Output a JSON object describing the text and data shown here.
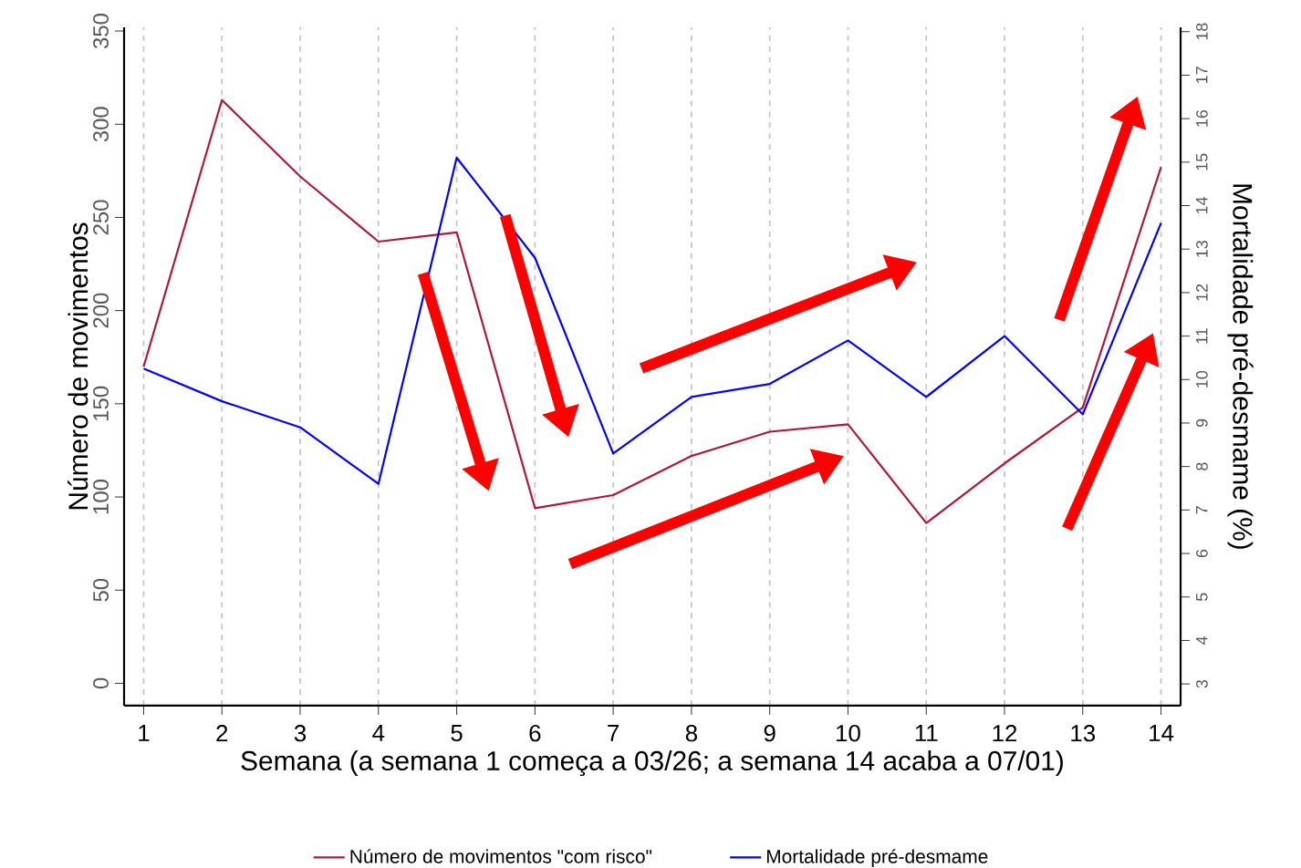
{
  "chart_data": {
    "type": "line",
    "xlabel": "Semana (a semana 1 começa a 03/26; a semana 14 acaba a 07/01)",
    "ylabel": "Número de movimentos",
    "y2label": "Mortalidade pré-desmame (%)",
    "x": [
      1,
      2,
      3,
      4,
      5,
      6,
      7,
      8,
      9,
      10,
      11,
      12,
      13,
      14
    ],
    "xlim": [
      0.75,
      14.25
    ],
    "xticks": [
      1,
      2,
      3,
      4,
      5,
      6,
      7,
      8,
      9,
      10,
      11,
      12,
      13,
      14
    ],
    "ylim": [
      -12,
      352
    ],
    "yticks": [
      0,
      50,
      100,
      150,
      200,
      250,
      300,
      350
    ],
    "y2lim": [
      2.5,
      18.1
    ],
    "y2ticks": [
      3,
      4,
      5,
      6,
      7,
      8,
      9,
      10,
      11,
      12,
      13,
      14,
      15,
      16,
      17,
      18
    ],
    "grid": "x",
    "legend": "bottom",
    "marker": "none",
    "line_style": "solid",
    "series": [
      {
        "name": "Número de movimentos \"com risco\"",
        "color": "#b0173c",
        "values": [
          170,
          313,
          272,
          237,
          242,
          94,
          101,
          122,
          135,
          139,
          86,
          118,
          148,
          277
        ]
      },
      {
        "name": "Mortalidade pré-desmame",
        "color": "#0000ff",
        "axis": "y2",
        "values": [
          10.25,
          9.5,
          8.9,
          7.6,
          15.1,
          12.8,
          8.3,
          9.6,
          9.9,
          10.9,
          9.6,
          11.0,
          9.2,
          13.6
        ]
      }
    ]
  }
}
